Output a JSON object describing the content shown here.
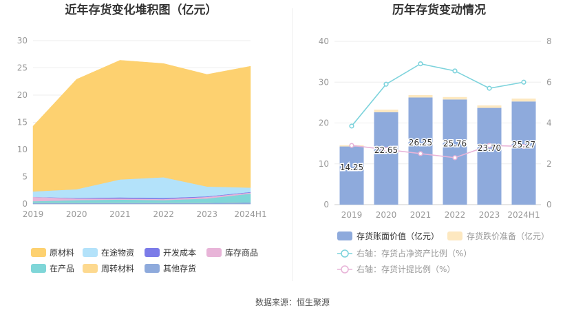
{
  "source": "数据来源：恒生聚源",
  "chart_data": [
    {
      "type": "area",
      "title": "近年存货变化堆积图（亿元）",
      "categories": [
        "2019",
        "2020",
        "2021",
        "2022",
        "2023",
        "2024H1"
      ],
      "ylim": [
        0,
        30
      ],
      "yticks": [
        "0",
        "5",
        "10",
        "15",
        "20",
        "25",
        "30"
      ],
      "grid": true,
      "legend_position": "bottom",
      "series": [
        {
          "name": "其他存货",
          "color": "#8eaadc",
          "values": [
            0.2,
            0.2,
            0.2,
            0.2,
            0.2,
            0.3
          ]
        },
        {
          "name": "周转材料",
          "color": "#fdd98f",
          "values": [
            0.0,
            0.0,
            0.0,
            0.0,
            0.0,
            0.0
          ]
        },
        {
          "name": "在产品",
          "color": "#7fd6d8",
          "values": [
            0.3,
            0.5,
            0.6,
            0.5,
            0.8,
            1.6
          ]
        },
        {
          "name": "库存商品",
          "color": "#e8b4d8",
          "values": [
            0.8,
            0.3,
            0.2,
            0.2,
            0.3,
            0.2
          ]
        },
        {
          "name": "开发成本",
          "color": "#7b7be8",
          "values": [
            0.0,
            0.1,
            0.2,
            0.2,
            0.1,
            0.1
          ]
        },
        {
          "name": "在途物资",
          "color": "#b3e2fa",
          "values": [
            1.0,
            1.6,
            3.3,
            3.8,
            1.8,
            0.8
          ]
        },
        {
          "name": "原材料",
          "color": "#fdd170",
          "values": [
            12.0,
            20.2,
            21.9,
            20.9,
            20.6,
            22.3
          ]
        }
      ],
      "legend_order": [
        "原材料",
        "在途物资",
        "开发成本",
        "库存商品",
        "在产品",
        "周转材料",
        "其他存货"
      ]
    },
    {
      "type": "bar",
      "title": "历年存货变动情况",
      "categories": [
        "2019",
        "2020",
        "2021",
        "2022",
        "2023",
        "2024H1"
      ],
      "ylim": [
        0,
        40
      ],
      "yticks": [
        "0",
        "10",
        "20",
        "30",
        "40"
      ],
      "y2lim": [
        0,
        8
      ],
      "y2ticks": [
        "0",
        "2",
        "4",
        "6",
        "8"
      ],
      "grid": true,
      "legend_position": "bottom",
      "bars": [
        {
          "name": "存货账面价值（亿元）",
          "color": "#8eaadc",
          "values": [
            14.25,
            22.65,
            26.25,
            25.76,
            23.7,
            25.27
          ],
          "labels": [
            "14.25",
            "22.65",
            "26.25",
            "25.76",
            "23.70",
            "25.27"
          ]
        },
        {
          "name": "存货跌价准备（亿元）",
          "color": "#fde8c0",
          "values": [
            0.3,
            0.6,
            0.6,
            0.6,
            0.6,
            0.7
          ]
        }
      ],
      "lines": [
        {
          "name": "右轴：存货占净资产比例（%）",
          "color": "#7dd3dc",
          "values": [
            3.85,
            5.9,
            6.9,
            6.55,
            5.7,
            6.0
          ]
        },
        {
          "name": "右轴：存货计提比例（%）",
          "color": "#e8b4d8",
          "values": [
            2.9,
            2.7,
            2.5,
            2.3,
            2.9,
            2.85
          ]
        }
      ]
    }
  ]
}
